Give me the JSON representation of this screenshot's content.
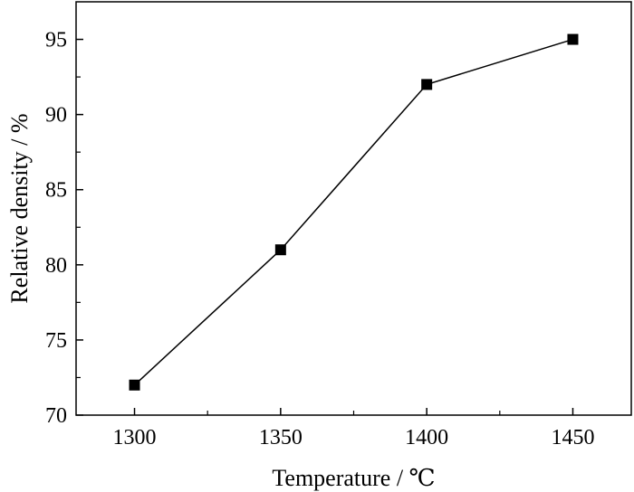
{
  "chart_data": {
    "type": "line",
    "xlabel": "Temperature / ℃",
    "ylabel": "Relative density / %",
    "x": [
      1300,
      1350,
      1400,
      1450
    ],
    "series": [
      {
        "values": [
          72,
          81,
          92,
          95
        ],
        "marker": "square",
        "color": "#000000"
      }
    ],
    "xlim": [
      1280,
      1470
    ],
    "ylim": [
      70,
      97.5
    ],
    "xticks": [
      1300,
      1350,
      1400,
      1450
    ],
    "xticks_minor": [
      1325,
      1375,
      1425
    ],
    "yticks": [
      70,
      75,
      80,
      85,
      90,
      95
    ],
    "yticks_minor": [
      72.5,
      77.5,
      82.5,
      87.5,
      92.5
    ],
    "xtick_labels": [
      "1300",
      "1350",
      "1400",
      "1450"
    ],
    "ytick_labels": [
      "70",
      "75",
      "80",
      "85",
      "90",
      "95"
    ],
    "grid": false,
    "legend": false
  }
}
